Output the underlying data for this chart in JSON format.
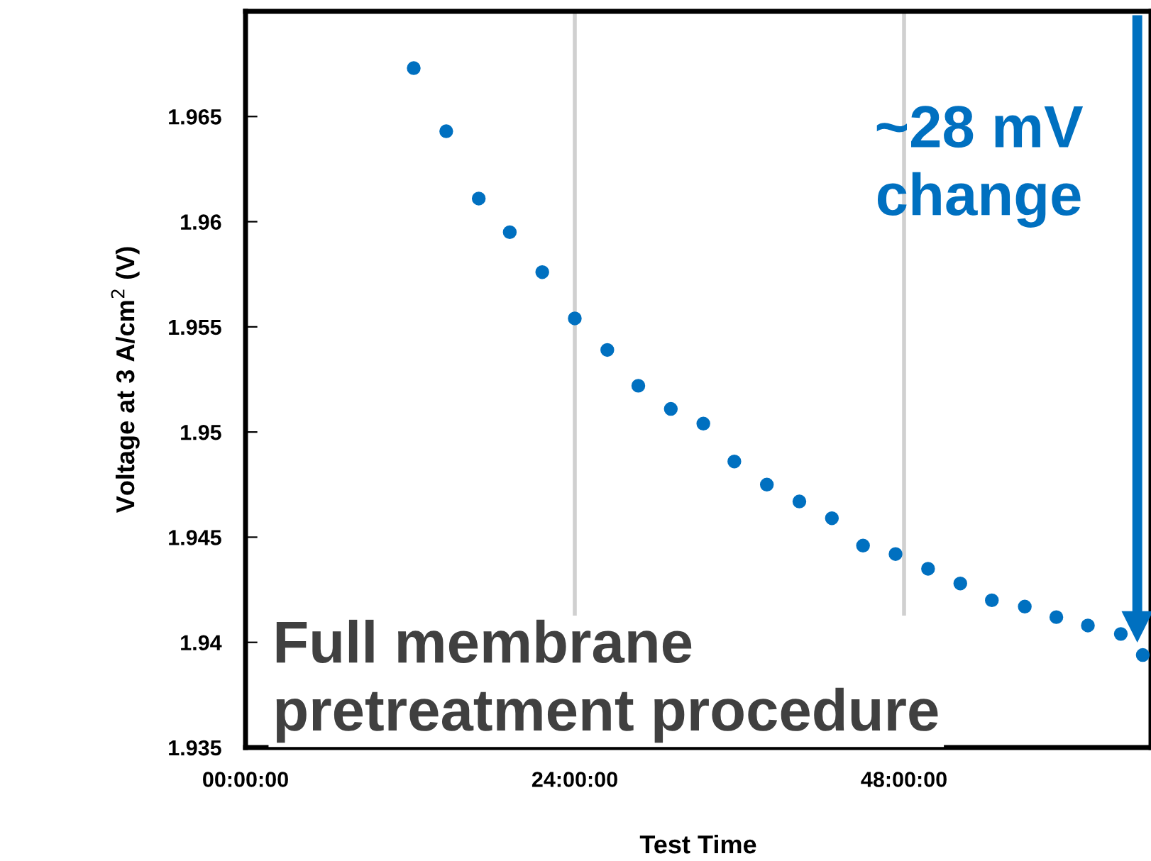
{
  "chart_data": {
    "type": "scatter",
    "xlabel": "Test Time",
    "ylabel": "Voltage at 3 A/cm$^{2}$ (V)",
    "x": [
      12.26,
      14.63,
      17.0,
      19.26,
      21.63,
      24.0,
      26.37,
      28.63,
      31.0,
      33.37,
      35.63,
      38.0,
      40.37,
      42.74,
      45.01,
      47.38,
      49.75,
      52.1,
      54.4,
      56.8,
      59.1,
      61.4,
      63.8,
      65.4
    ],
    "series": [
      {
        "color": "#0070c0",
        "values": [
          1.9673,
          1.9643,
          1.9611,
          1.9595,
          1.9576,
          1.9554,
          1.9539,
          1.9522,
          1.9511,
          1.9504,
          1.9486,
          1.9475,
          1.9467,
          1.9459,
          1.9446,
          1.9442,
          1.9435,
          1.9428,
          1.942,
          1.9417,
          1.9412,
          1.9408,
          1.9404,
          1.9394
        ]
      }
    ],
    "xlim": [
      0,
      66
    ],
    "ylim": [
      1.935,
      1.97
    ],
    "xticks": [
      {
        "value": 0,
        "label": "00:00:00"
      },
      {
        "value": 24,
        "label": "24:00:00"
      },
      {
        "value": 48,
        "label": "48:00:00"
      }
    ],
    "yticks": [
      1.935,
      {
        "value": 1.94,
        "label": "1.94"
      },
      1.945,
      {
        "value": 1.95,
        "label": "1.95"
      },
      1.955,
      {
        "value": 1.96,
        "label": "1.96"
      },
      1.965
    ],
    "grid": "x",
    "marker": "circle",
    "annotations": [
      "~28 mV\nchange",
      "Full membrane\npretreatment procedure"
    ]
  }
}
